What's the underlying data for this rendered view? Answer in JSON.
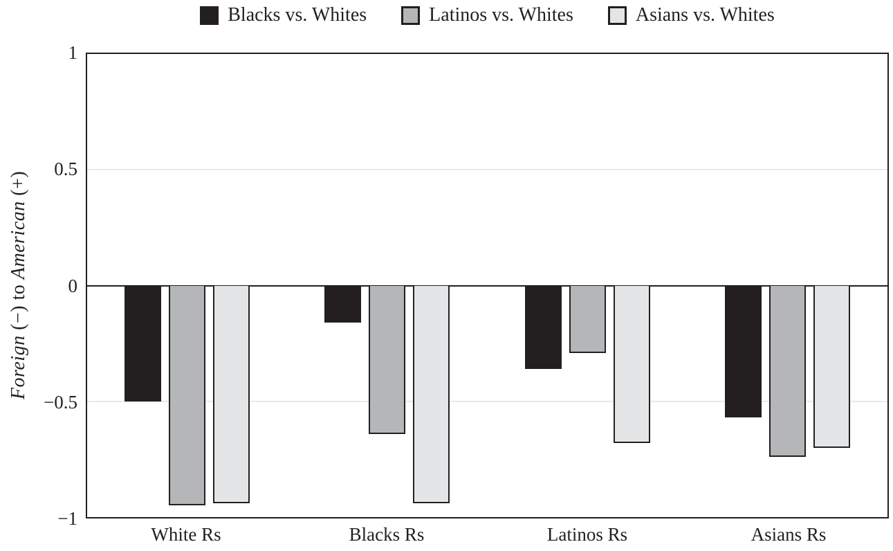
{
  "chart_data": {
    "type": "bar",
    "title": "",
    "categories": [
      "White Rs",
      "Blacks Rs",
      "Latinos Rs",
      "Asians Rs"
    ],
    "series": [
      {
        "name": "Blacks vs. Whites",
        "color": "#231f20",
        "values": [
          -0.5,
          -0.16,
          -0.36,
          -0.57
        ]
      },
      {
        "name": "Latinos vs. Whites",
        "color": "#b4b6b8",
        "values": [
          -0.95,
          -0.64,
          -0.29,
          -0.74
        ]
      },
      {
        "name": "Asians vs. Whites",
        "color": "#e4e5e7",
        "values": [
          -0.94,
          -0.94,
          -0.68,
          -0.7
        ]
      }
    ],
    "ylabel_parts": [
      {
        "text": "Foreign",
        "italic": true
      },
      {
        "text": " (−) to ",
        "italic": false
      },
      {
        "text": "American",
        "italic": true
      },
      {
        "text": " (+)",
        "italic": false
      }
    ],
    "ylim": [
      -1,
      1
    ],
    "yticks": [
      1,
      0.5,
      0,
      -0.5,
      -1
    ],
    "ytick_labels": [
      "1",
      "0.5",
      "0",
      "−0.5",
      "−1"
    ],
    "grid": "horizontal gridlines at 0.5 and -0.5; solid black zero line",
    "legend_position": "top center",
    "colors": {
      "axis": "#231f20",
      "gridline": "#e9e9e9",
      "background": "#ffffff"
    }
  }
}
